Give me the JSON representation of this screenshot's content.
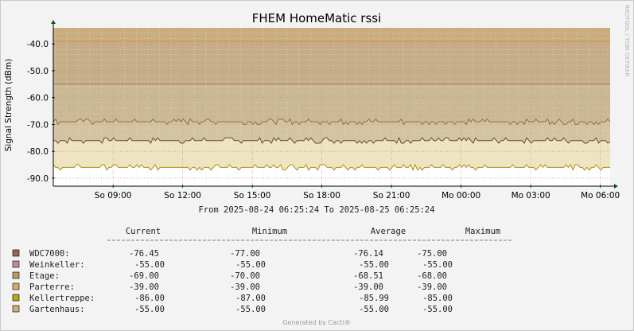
{
  "chart_data": {
    "type": "area",
    "title": "FHEM HomeMatic rssi",
    "ylabel": "Signal Strength (dBm)",
    "watermark": "RRDTOOL / TOBI OETIKER",
    "ylim": [
      -93,
      -34
    ],
    "yticks": [
      "-40.0",
      "-50.0",
      "-60.0",
      "-70.0",
      "-80.0",
      "-90.0"
    ],
    "ytick_values": [
      -40,
      -50,
      -60,
      -70,
      -80,
      -90
    ],
    "x_hours_range": [
      6.4233,
      30.4233
    ],
    "xticks": [
      "So 09:00",
      "So 12:00",
      "So 15:00",
      "So 18:00",
      "So 21:00",
      "Mo 00:00",
      "Mo 03:00",
      "Mo 06:00"
    ],
    "xtick_hours": [
      9,
      12,
      15,
      18,
      21,
      24,
      27,
      30
    ],
    "range_text": "From 2025-08-24 06:25:24 To 2025-08-25 06:25:24",
    "legend_headers": [
      "Current",
      "Minimum",
      "Average",
      "Maximum"
    ],
    "series": [
      {
        "name": "WDC7000:",
        "color": "#8f6a55",
        "line": "#6b4a30",
        "current": "-76.45",
        "minimum": "-77.00",
        "average": "-76.14",
        "maximum": "-75.00",
        "level": -76.14,
        "dips_to": -77.0,
        "peaks_to": -75.0
      },
      {
        "name": "Weinkeller:",
        "color": "#b89090",
        "line": "#a08080",
        "current": "-55.00",
        "minimum": "-55.00",
        "average": "-55.00",
        "maximum": "-55.00",
        "level": -55.0,
        "dips_to": -55.0,
        "peaks_to": -55.0
      },
      {
        "name": "Etage:",
        "color": "#b49a70",
        "line": "#8f7040",
        "current": "-69.00",
        "minimum": "-70.00",
        "average": "-68.51",
        "maximum": "-68.00",
        "level": -68.51,
        "dips_to": -70.0,
        "peaks_to": -68.0
      },
      {
        "name": "Parterre:",
        "color": "#d8a868",
        "line": "#c89050",
        "current": "-39.00",
        "minimum": "-39.00",
        "average": "-39.00",
        "maximum": "-39.00",
        "level": -39.0,
        "dips_to": -39.0,
        "peaks_to": -39.0
      },
      {
        "name": "Kellertreppe:",
        "color": "#c0a020",
        "line": "#b09010",
        "current": "-86.00",
        "minimum": "-87.00",
        "average": "-85.99",
        "maximum": "-85.00",
        "level": -85.99,
        "dips_to": -87.0,
        "peaks_to": -85.0
      },
      {
        "name": "Gartenhaus:",
        "color": "#c8b070",
        "line": "#a89050",
        "current": "-55.00",
        "minimum": "-55.00",
        "average": "-55.00",
        "maximum": "-55.00",
        "level": -55.0,
        "dips_to": -55.0,
        "peaks_to": -55.0
      }
    ],
    "footer": "Generated by Cacti®"
  }
}
